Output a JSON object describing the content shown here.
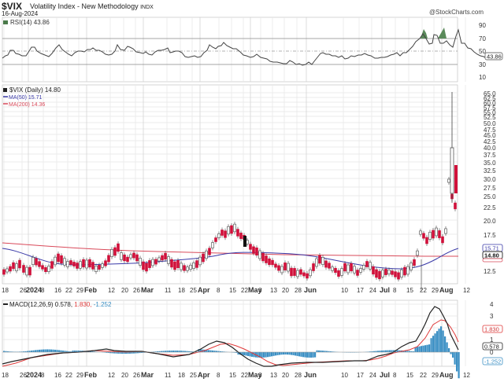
{
  "header": {
    "symbol": "$VIX",
    "description": "Volatility Index - New Methodology",
    "exchange": "INDX",
    "date": "16-Aug-2024",
    "copyright": "@StockCharts.com"
  },
  "rsi_panel": {
    "legend": "RSI(14) 43.86",
    "current_value": "43.86",
    "axis_ticks": [
      "90",
      "70",
      "50",
      "30",
      "10"
    ]
  },
  "price_panel": {
    "legend_price": "$VIX (Daily) 14.80",
    "legend_ma50": "MA(50) 15.71",
    "legend_ma200": "MA(200) 14.36",
    "ma50_value": "15.71",
    "close_value": "14.80",
    "ma200_value": "14.36",
    "axis_ticks": [
      "65.0",
      "62.5",
      "60.0",
      "57.5",
      "55.0",
      "52.5",
      "50.0",
      "47.5",
      "45.0",
      "42.5",
      "40.0",
      "37.5",
      "35.0",
      "32.5",
      "30.0",
      "27.5",
      "25.0",
      "22.5",
      "20.0",
      "17.5",
      "12.5"
    ]
  },
  "x_axis": {
    "labels": [
      {
        "text": "18",
        "bold": false
      },
      {
        "text": "26",
        "bold": false
      },
      {
        "text": "2024",
        "bold": true
      },
      {
        "text": "8",
        "bold": false
      },
      {
        "text": "16",
        "bold": false
      },
      {
        "text": "22",
        "bold": false
      },
      {
        "text": "29",
        "bold": false
      },
      {
        "text": "Feb",
        "bold": true
      },
      {
        "text": "12",
        "bold": false
      },
      {
        "text": "20",
        "bold": false
      },
      {
        "text": "26",
        "bold": false
      },
      {
        "text": "Mar",
        "bold": true
      },
      {
        "text": "11",
        "bold": false
      },
      {
        "text": "18",
        "bold": false
      },
      {
        "text": "25",
        "bold": false
      },
      {
        "text": "Apr",
        "bold": true
      },
      {
        "text": "8",
        "bold": false
      },
      {
        "text": "15",
        "bold": false
      },
      {
        "text": "22",
        "bold": false
      },
      {
        "text": "May",
        "bold": true
      },
      {
        "text": "6",
        "bold": false
      },
      {
        "text": "13",
        "bold": false
      },
      {
        "text": "20",
        "bold": false
      },
      {
        "text": "28",
        "bold": false
      },
      {
        "text": "Jun",
        "bold": true
      },
      {
        "text": "10",
        "bold": false
      },
      {
        "text": "17",
        "bold": false
      },
      {
        "text": "24",
        "bold": false
      },
      {
        "text": "Jul",
        "bold": true
      },
      {
        "text": "8",
        "bold": false
      },
      {
        "text": "15",
        "bold": false
      },
      {
        "text": "22",
        "bold": false
      },
      {
        "text": "29",
        "bold": false
      },
      {
        "text": "Aug",
        "bold": true
      },
      {
        "text": "12",
        "bold": false
      }
    ]
  },
  "macd_panel": {
    "legend_prefix": "MACD(12,26,9) 0.578,",
    "signal_text": "1.830,",
    "hist_text": "-1.252",
    "macd_value": "0.578",
    "signal_value": "1.830",
    "hist_value": "-1.252",
    "axis_ticks": [
      "4",
      "3",
      "2",
      "1",
      "0",
      "-1"
    ]
  },
  "colors": {
    "up_candle": "#ffffff",
    "down_candle": "#d0103a",
    "ma50": "#3a3aa8",
    "ma200": "#d94a5a",
    "macd_line": "#222222",
    "signal_line": "#e03a3a",
    "histogram": "#3a8fc4",
    "rsi_fill": "#5a8a5a",
    "grid": "#e4e4e4"
  },
  "chart_data": [
    {
      "type": "line",
      "title": "RSI(14)",
      "ylim": [
        0,
        100
      ],
      "reference_lines": [
        70,
        50,
        30
      ],
      "x": [
        "Dec 18",
        "Jan 2",
        "Jan 16",
        "Feb 1",
        "Feb 15",
        "Mar 1",
        "Mar 15",
        "Apr 1",
        "Apr 15",
        "May 1",
        "May 15",
        "Jun 1",
        "Jun 15",
        "Jul 1",
        "Jul 15",
        "Jul 29",
        "Aug 5",
        "Aug 16"
      ],
      "values": [
        38,
        50,
        45,
        55,
        47,
        52,
        48,
        53,
        70,
        48,
        40,
        36,
        52,
        44,
        48,
        73,
        86,
        43.86
      ]
    },
    {
      "type": "candlestick",
      "title": "$VIX (Daily) 14.80",
      "ylabel": "",
      "ylim": [
        11,
        66
      ],
      "x": [
        "Dec 18",
        "Jan 2",
        "Jan 16",
        "Feb 1",
        "Feb 15",
        "Mar 1",
        "Mar 15",
        "Apr 1",
        "Apr 15",
        "Apr 19",
        "May 1",
        "May 15",
        "Jun 1",
        "Jun 15",
        "Jul 1",
        "Jul 15",
        "Jul 24",
        "Aug 2",
        "Aug 5",
        "Aug 8",
        "Aug 12",
        "Aug 16"
      ],
      "close": [
        12.5,
        13.0,
        14.0,
        13.5,
        14.2,
        13.8,
        14.5,
        13.2,
        16.0,
        18.7,
        14.5,
        12.0,
        12.5,
        12.4,
        12.0,
        16.5,
        18.5,
        23.4,
        38.6,
        27.8,
        20.7,
        14.8
      ],
      "high_spike": {
        "date": "Aug 5",
        "intraday_high": 65.73
      },
      "series": [
        {
          "name": "MA(50)",
          "last": 15.71
        },
        {
          "name": "MA(200)",
          "last": 14.36
        }
      ]
    },
    {
      "type": "line",
      "title": "MACD(12,26,9)",
      "ylim": [
        -1.5,
        4
      ],
      "series": [
        {
          "name": "MACD",
          "values": [
            -0.8,
            -0.3,
            0.0,
            0.2,
            0.4,
            0.1,
            0.0,
            -0.2,
            1.5,
            0.3,
            -0.8,
            -0.8,
            -0.3,
            -0.3,
            0.2,
            1.2,
            3.8,
            0.578
          ]
        },
        {
          "name": "Signal",
          "values": [
            -1.0,
            -0.5,
            -0.1,
            0.1,
            0.3,
            0.2,
            0.0,
            -0.1,
            1.0,
            0.6,
            -0.5,
            -0.9,
            -0.4,
            -0.3,
            0.1,
            0.8,
            2.8,
            1.83
          ]
        },
        {
          "name": "Histogram",
          "values": [
            0.2,
            0.2,
            0.1,
            0.1,
            0.1,
            -0.1,
            0.0,
            -0.1,
            0.5,
            -0.3,
            -0.3,
            0.1,
            0.1,
            0.0,
            0.1,
            0.4,
            1.7,
            -1.252
          ]
        }
      ]
    }
  ]
}
